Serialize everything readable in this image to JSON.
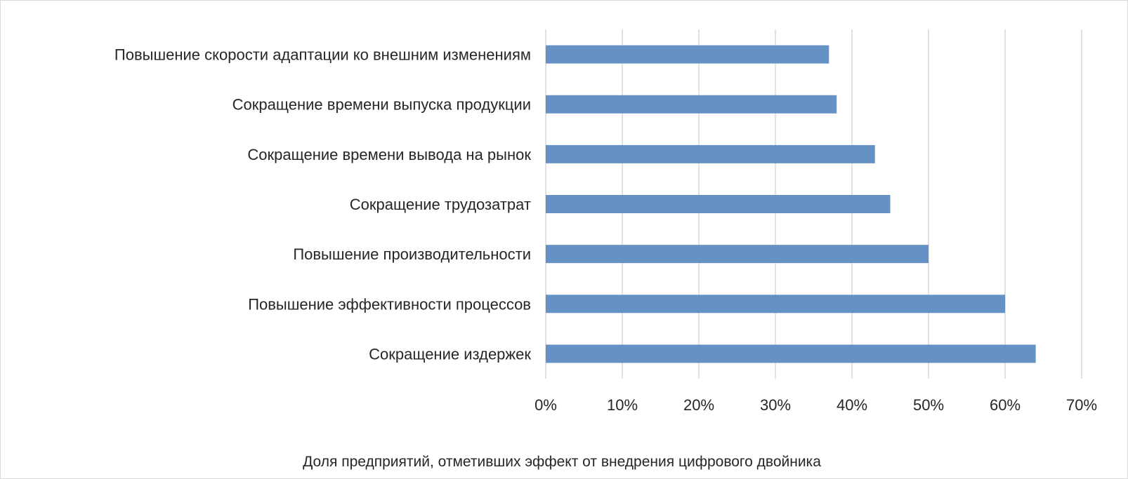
{
  "chart_data": {
    "type": "bar",
    "orientation": "horizontal",
    "categories": [
      "Повышение скорости адаптации ко внешним изменениям",
      "Сокращение времени выпуска продукции",
      "Сокращение времени вывода на рынок",
      "Сокращение трудозатрат",
      "Повышение производительности",
      "Повышение эффективности процессов",
      "Сокращение издержек"
    ],
    "values": [
      37,
      38,
      43,
      45,
      50,
      60,
      64
    ],
    "title": "",
    "xlabel": "Доля предприятий, отметивших эффект от внедрения цифрового двойника",
    "ylabel": "",
    "xlim": [
      0,
      70
    ],
    "xticks": [
      "0%",
      "10%",
      "20%",
      "30%",
      "40%",
      "50%",
      "60%",
      "70%"
    ],
    "grid": "vertical",
    "legend": "none",
    "bar_color": "#6591c4",
    "grid_color": "#d9d9d9"
  }
}
